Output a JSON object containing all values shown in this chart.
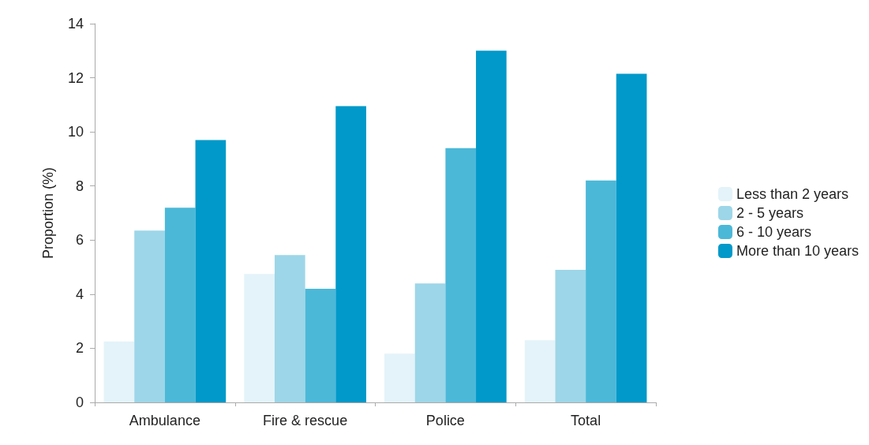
{
  "chart_data": {
    "type": "bar",
    "ylabel": "Proportion (%)",
    "categories": [
      "Ambulance",
      "Fire & rescue",
      "Police",
      "Total"
    ],
    "series": [
      {
        "name": "Less than 2 years",
        "color": "#e3f3f9",
        "values": [
          2.25,
          4.75,
          1.8,
          2.3
        ]
      },
      {
        "name": "2 - 5 years",
        "color": "#9dd6e8",
        "values": [
          6.35,
          5.45,
          4.4,
          4.9
        ]
      },
      {
        "name": "6 - 10 years",
        "color": "#4bb8d8",
        "values": [
          7.2,
          4.2,
          9.4,
          8.2
        ]
      },
      {
        "name": "More than 10 years",
        "color": "#0099c9",
        "values": [
          9.7,
          10.95,
          13,
          12.15
        ]
      }
    ],
    "ylim": [
      0,
      14
    ],
    "yticks": [
      0,
      2,
      4,
      6,
      8,
      10,
      12,
      14
    ],
    "grid": false,
    "legend": "right"
  }
}
